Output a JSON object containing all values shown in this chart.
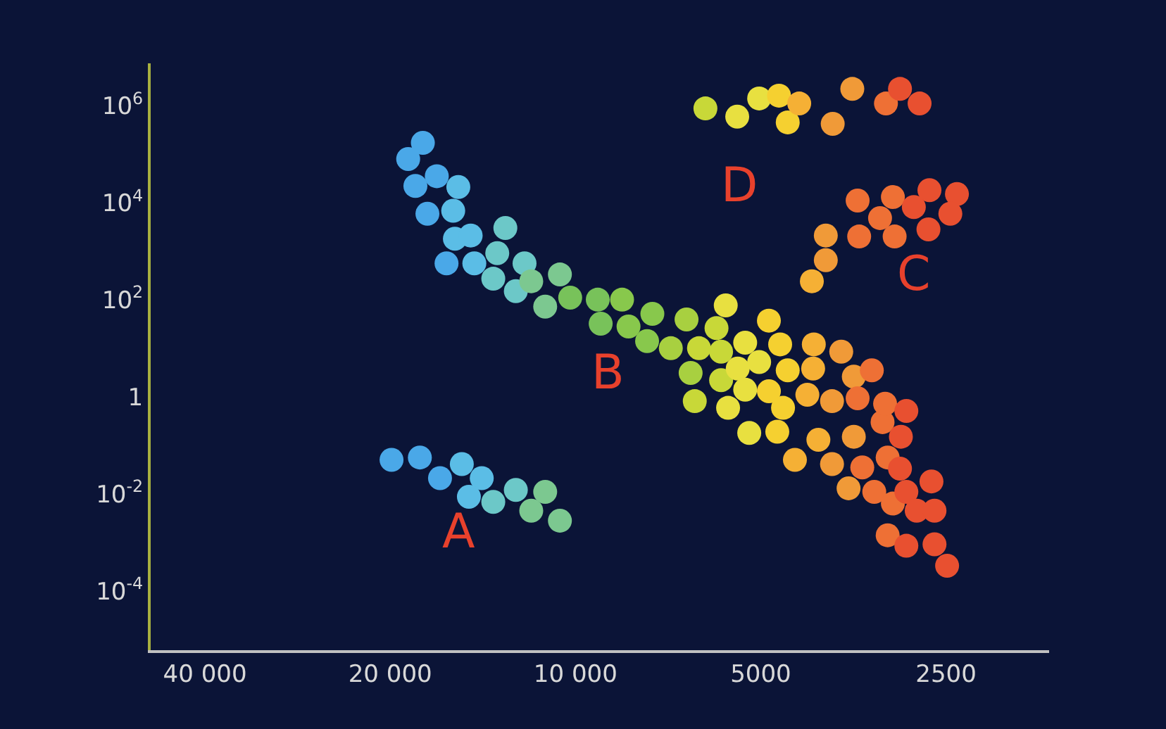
{
  "chart_data": {
    "type": "scatter",
    "log": "xy",
    "grid": false,
    "marker": "circle",
    "xlim": [
      49000,
      1700
    ],
    "xticks": [
      {
        "value": 40000,
        "label": "40 000"
      },
      {
        "value": 20000,
        "label": "20 000"
      },
      {
        "value": 10000,
        "label": "10 000"
      },
      5000,
      2500
    ],
    "ylim": [
      6e-06,
      7400000
    ],
    "yticks": [
      {
        "value": 0.0001,
        "label": "10$^{-4}$"
      },
      {
        "value": 0.01,
        "label": "10$^{-2}$"
      },
      1,
      {
        "value": 100,
        "label": "10$^{2}$"
      },
      {
        "value": 10000,
        "label": "10$^{4}$"
      },
      {
        "value": 1000000,
        "label": "10$^{6}$"
      }
    ],
    "series": [
      {
        "color": "#4aa8e8",
        "x": [
          17700,
          18700,
          16800,
          18200,
          17400,
          16200,
          19900,
          17900,
          16600
        ],
        "values": [
          170000,
          79000,
          35000,
          22000,
          5900,
          560,
          0.05,
          0.056,
          0.021
        ]
      },
      {
        "color": "#5bbde6",
        "x": [
          15500,
          15800,
          15700,
          14800,
          14600,
          15300,
          14200,
          14900
        ],
        "values": [
          21000,
          6800,
          1800,
          2100,
          560,
          0.041,
          0.021,
          0.0087
        ]
      },
      {
        "color": "#6cc8c8",
        "x": [
          13000,
          13400,
          13600,
          12100,
          12500,
          13600,
          12500
        ],
        "values": [
          3000,
          910,
          270,
          560,
          150,
          0.0068,
          0.012
        ]
      },
      {
        "color": "#7cc890",
        "x": [
          11800,
          10600,
          11200,
          11200,
          11800,
          10600
        ],
        "values": [
          240,
          330,
          72,
          0.011,
          0.0045,
          0.0028
        ]
      },
      {
        "color": "#78c25a",
        "x": [
          10200,
          9200,
          9100
        ],
        "values": [
          110,
          100,
          32
        ]
      },
      {
        "color": "#88c84c",
        "x": [
          8400,
          7500,
          8200,
          7650
        ],
        "values": [
          100,
          51,
          28,
          14
        ]
      },
      {
        "color": "#a8d040",
        "x": [
          7000,
          6600,
          6500
        ],
        "values": [
          10,
          39,
          3.1
        ]
      },
      {
        "color": "#c8d838",
        "x": [
          6300,
          5900,
          5800,
          6400,
          5800,
          6150
        ],
        "values": [
          10,
          26,
          8.5,
          0.81,
          2.2,
          870000
        ]
      },
      {
        "color": "#e8e040",
        "x": [
          5700,
          5650,
          5300,
          5030,
          5450,
          5300,
          5220,
          5460,
          5030
        ],
        "values": [
          76,
          0.59,
          13,
          5.2,
          3.8,
          1.4,
          0.18,
          590000,
          1400000
        ]
      },
      {
        "color": "#f5d030",
        "x": [
          4850,
          4650,
          4850,
          4520,
          4600,
          4700,
          4670,
          4520
        ],
        "values": [
          37,
          12,
          1.3,
          3.5,
          0.59,
          0.19,
          1600000,
          450000
        ]
      },
      {
        "color": "#f5b035",
        "x": [
          4400,
          4100,
          4110,
          4200,
          4030,
          4330,
          4130
        ],
        "values": [
          0.05,
          12,
          3.8,
          1.1,
          0.13,
          1100000,
          240
        ]
      },
      {
        "color": "#f09a38",
        "x": [
          3700,
          3830,
          3830,
          3530,
          3530,
          3600,
          3820,
          3550,
          3920,
          3920
        ],
        "values": [
          8.5,
          0.81,
          0.041,
          2.6,
          0.15,
          0.013,
          420000,
          2200000,
          2100,
          650
        ]
      },
      {
        "color": "#ee7035",
        "x": [
          3300,
          3480,
          3420,
          3270,
          3170,
          3140,
          3110,
          3050,
          3110,
          3130,
          3480,
          3050,
          3200,
          3030,
          3460
        ],
        "values": [
          3.5,
          0.93,
          0.035,
          0.011,
          0.3,
          0.72,
          0.056,
          0.0063,
          0.0014,
          1100000,
          11000,
          13000,
          4800,
          2000,
          2000
        ]
      },
      {
        "color": "#e85030",
        "x": [
          2900,
          2960,
          2970,
          2900,
          2790,
          2610,
          2640,
          2900,
          2610,
          2490,
          2970,
          2760,
          2660,
          2400,
          2820,
          2460,
          2670
        ],
        "values": [
          0.51,
          0.15,
          0.033,
          0.011,
          0.0045,
          0.0045,
          0.018,
          0.00085,
          0.00091,
          0.00033,
          2200000,
          1100000,
          18000,
          15000,
          8100,
          5900,
          2800
        ]
      }
    ],
    "annotations": [
      "A",
      "B",
      "C",
      "D"
    ]
  }
}
